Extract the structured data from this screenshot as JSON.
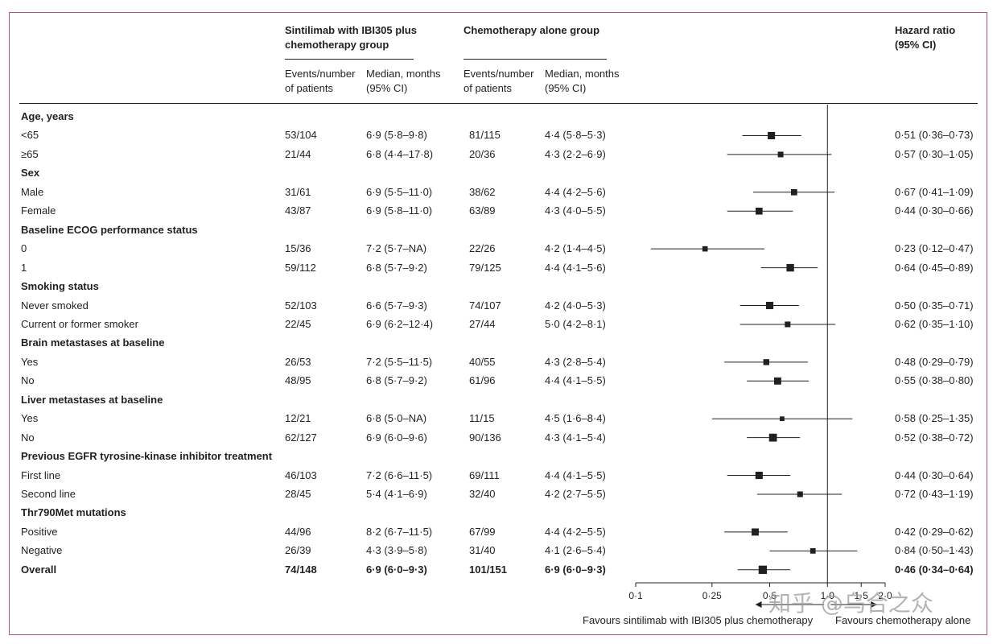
{
  "headers": {
    "group_a": "Sintilimab with IBI305 plus chemotherapy group",
    "group_b": "Chemotherapy alone group",
    "events_a": "Events/number of patients",
    "median_a": "Median, months (95% CI)",
    "events_b": "Events/number of patients",
    "median_b": "Median, months (95% CI)",
    "hr": "Hazard ratio (95% CI)"
  },
  "chart_data": {
    "type": "forest",
    "x_scale": "log",
    "xlim": [
      0.1,
      2.0
    ],
    "reference_line": 1.0,
    "x_ticks": [
      "0·1",
      "0·25",
      "0·5",
      "1·0",
      "1·5",
      "2·0"
    ],
    "x_tick_values": [
      0.1,
      0.25,
      0.5,
      1.0,
      1.5,
      2.0
    ],
    "favours_left": "Favours sintilimab with IBI305 plus chemotherapy",
    "favours_right": "Favours chemotherapy alone",
    "rows": [
      {
        "label": "Age, years",
        "heading": true
      },
      {
        "label": "<65",
        "events_a": "53/104",
        "median_a": "6·9 (5·8–9·8)",
        "events_b": "81/115",
        "median_b": "4·4 (5·8–5·3)",
        "hr_text": "0·51 (0·36–0·73)",
        "hr": 0.51,
        "lo": 0.36,
        "hi": 0.73,
        "weight": 104
      },
      {
        "label": "≥65",
        "events_a": "21/44",
        "median_a": "6·8 (4·4–17·8)",
        "events_b": "20/36",
        "median_b": "4·3 (2·2–6·9)",
        "hr_text": "0·57 (0·30–1·05)",
        "hr": 0.57,
        "lo": 0.3,
        "hi": 1.05,
        "weight": 44
      },
      {
        "label": "Sex",
        "heading": true
      },
      {
        "label": "Male",
        "events_a": "31/61",
        "median_a": "6·9 (5·5–11·0)",
        "events_b": "38/62",
        "median_b": "4·4 (4·2–5·6)",
        "hr_text": "0·67 (0·41–1·09)",
        "hr": 0.67,
        "lo": 0.41,
        "hi": 1.09,
        "weight": 61
      },
      {
        "label": "Female",
        "events_a": "43/87",
        "median_a": "6·9 (5·8–11·0)",
        "events_b": "63/89",
        "median_b": "4·3 (4·0–5·5)",
        "hr_text": "0·44 (0·30–0·66)",
        "hr": 0.44,
        "lo": 0.3,
        "hi": 0.66,
        "weight": 87
      },
      {
        "label": "Baseline ECOG performance status",
        "heading": true
      },
      {
        "label": "0",
        "events_a": "15/36",
        "median_a": "7·2 (5·7–NA)",
        "events_b": "22/26",
        "median_b": "4·2 (1·4–4·5)",
        "hr_text": "0·23 (0·12–0·47)",
        "hr": 0.23,
        "lo": 0.12,
        "hi": 0.47,
        "weight": 36
      },
      {
        "label": "1",
        "events_a": "59/112",
        "median_a": "6·8 (5·7–9·2)",
        "events_b": "79/125",
        "median_b": "4·4 (4·1–5·6)",
        "hr_text": "0·64 (0·45–0·89)",
        "hr": 0.64,
        "lo": 0.45,
        "hi": 0.89,
        "weight": 112
      },
      {
        "label": "Smoking status",
        "heading": true
      },
      {
        "label": "Never smoked",
        "events_a": "52/103",
        "median_a": "6·6 (5·7–9·3)",
        "events_b": "74/107",
        "median_b": "4·2 (4·0–5·3)",
        "hr_text": "0·50 (0·35–0·71)",
        "hr": 0.5,
        "lo": 0.35,
        "hi": 0.71,
        "weight": 103
      },
      {
        "label": "Current or former smoker",
        "events_a": "22/45",
        "median_a": "6·9 (6·2–12·4)",
        "events_b": "27/44",
        "median_b": "5·0 (4·2–8·1)",
        "hr_text": "0·62 (0·35–1·10)",
        "hr": 0.62,
        "lo": 0.35,
        "hi": 1.1,
        "weight": 45
      },
      {
        "label": "Brain metastases at baseline",
        "heading": true
      },
      {
        "label": "Yes",
        "events_a": "26/53",
        "median_a": "7·2 (5·5–11·5)",
        "events_b": "40/55",
        "median_b": "4·3 (2·8–5·4)",
        "hr_text": "0·48 (0·29–0·79)",
        "hr": 0.48,
        "lo": 0.29,
        "hi": 0.79,
        "weight": 53
      },
      {
        "label": "No",
        "events_a": "48/95",
        "median_a": "6·8 (5·7–9·2)",
        "events_b": "61/96",
        "median_b": "4·4 (4·1–5·5)",
        "hr_text": "0·55 (0·38–0·80)",
        "hr": 0.55,
        "lo": 0.38,
        "hi": 0.8,
        "weight": 95
      },
      {
        "label": "Liver metastases at baseline",
        "heading": true
      },
      {
        "label": "Yes",
        "events_a": "12/21",
        "median_a": "6·8 (5·0–NA)",
        "events_b": "11/15",
        "median_b": "4·5 (1·6–8·4)",
        "hr_text": "0·58 (0·25–1·35)",
        "hr": 0.58,
        "lo": 0.25,
        "hi": 1.35,
        "weight": 21
      },
      {
        "label": "No",
        "events_a": "62/127",
        "median_a": "6·9 (6·0–9·6)",
        "events_b": "90/136",
        "median_b": "4·3 (4·1–5·4)",
        "hr_text": "0·52 (0·38–0·72)",
        "hr": 0.52,
        "lo": 0.38,
        "hi": 0.72,
        "weight": 127
      },
      {
        "label": "Previous EGFR tyrosine-kinase inhibitor treatment",
        "heading": true
      },
      {
        "label": "First line",
        "events_a": "46/103",
        "median_a": "7·2 (6·6–11·5)",
        "events_b": "69/111",
        "median_b": "4·4 (4·1–5·5)",
        "hr_text": "0·44 (0·30–0·64)",
        "hr": 0.44,
        "lo": 0.3,
        "hi": 0.64,
        "weight": 103
      },
      {
        "label": "Second line",
        "events_a": "28/45",
        "median_a": "5·4 (4·1–6·9)",
        "events_b": "32/40",
        "median_b": "4·2 (2·7–5·5)",
        "hr_text": "0·72 (0·43–1·19)",
        "hr": 0.72,
        "lo": 0.43,
        "hi": 1.19,
        "weight": 45
      },
      {
        "label": "Thr790Met mutations",
        "heading": true
      },
      {
        "label": "Positive",
        "events_a": "44/96",
        "median_a": "8·2 (6·7–11·5)",
        "events_b": "67/99",
        "median_b": "4·4 (4·2–5·5)",
        "hr_text": "0·42 (0·29–0·62)",
        "hr": 0.42,
        "lo": 0.29,
        "hi": 0.62,
        "weight": 96
      },
      {
        "label": "Negative",
        "events_a": "26/39",
        "median_a": "4·3 (3·9–5·8)",
        "events_b": "31/40",
        "median_b": "4·1 (2·6–5·4)",
        "hr_text": "0·84 (0·50–1·43)",
        "hr": 0.84,
        "lo": 0.5,
        "hi": 1.43,
        "weight": 39
      },
      {
        "label": "Overall",
        "overall": true,
        "events_a": "74/148",
        "median_a": "6·9 (6·0–9·3)",
        "events_b": "101/151",
        "median_b": "6·9 (6·0–9·3)",
        "hr_text": "0·46 (0·34–0·64)",
        "hr": 0.46,
        "lo": 0.34,
        "hi": 0.64,
        "weight": 148
      }
    ]
  },
  "watermark": "知乎 @乌合之众"
}
